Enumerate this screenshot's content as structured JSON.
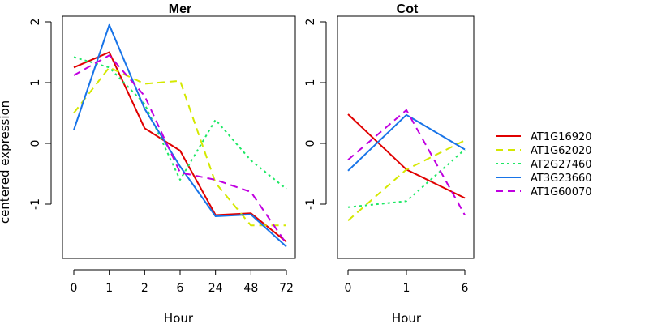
{
  "figure": {
    "ylabel": "centered expression",
    "legend": {
      "position": "right",
      "entries": [
        {
          "name": "AT1G16920",
          "color": "#e00000",
          "dash": "solid"
        },
        {
          "name": "AT1G62020",
          "color": "#d4e800",
          "dash": "dashed"
        },
        {
          "name": "AT2G27460",
          "color": "#1ee865",
          "dash": "dotted"
        },
        {
          "name": "AT3G23660",
          "color": "#1874e8",
          "dash": "solid"
        },
        {
          "name": "AT1G60070",
          "color": "#c000e0",
          "dash": "dashed"
        }
      ]
    }
  },
  "chart_data": [
    {
      "type": "line",
      "title": "Mer",
      "xlabel": "Hour",
      "ylabel": "centered expression",
      "categories": [
        "0",
        "1",
        "2",
        "6",
        "24",
        "48",
        "72"
      ],
      "ylim": [
        -1.9,
        2.1
      ],
      "yticks": [
        -1,
        0,
        1,
        2
      ],
      "grid": false,
      "series": [
        {
          "name": "AT1G16920",
          "values": [
            1.25,
            1.5,
            0.25,
            -0.12,
            -1.18,
            -1.15,
            -1.62
          ]
        },
        {
          "name": "AT1G62020",
          "values": [
            0.5,
            1.25,
            0.98,
            1.03,
            -0.65,
            -1.35,
            -1.35
          ]
        },
        {
          "name": "AT2G27460",
          "values": [
            1.42,
            1.25,
            0.65,
            -0.6,
            0.39,
            -0.28,
            -0.75
          ]
        },
        {
          "name": "AT3G23660",
          "values": [
            0.22,
            1.95,
            0.57,
            -0.38,
            -1.2,
            -1.17,
            -1.7
          ]
        },
        {
          "name": "AT1G60070",
          "values": [
            1.12,
            1.45,
            0.78,
            -0.48,
            -0.6,
            -0.8,
            -1.65
          ]
        }
      ]
    },
    {
      "type": "line",
      "title": "Cot",
      "xlabel": "Hour",
      "categories": [
        "0",
        "1",
        "6"
      ],
      "ylim": [
        -1.9,
        2.1
      ],
      "yticks": [
        -1,
        0,
        1,
        2
      ],
      "grid": false,
      "series": [
        {
          "name": "AT1G16920",
          "values": [
            0.48,
            -0.43,
            -0.9
          ]
        },
        {
          "name": "AT1G62020",
          "values": [
            -1.27,
            -0.43,
            0.05
          ]
        },
        {
          "name": "AT2G27460",
          "values": [
            -1.05,
            -0.95,
            -0.1
          ]
        },
        {
          "name": "AT3G23660",
          "values": [
            -0.45,
            0.47,
            -0.1
          ]
        },
        {
          "name": "AT1G60070",
          "values": [
            -0.27,
            0.55,
            -1.18
          ]
        }
      ]
    }
  ]
}
